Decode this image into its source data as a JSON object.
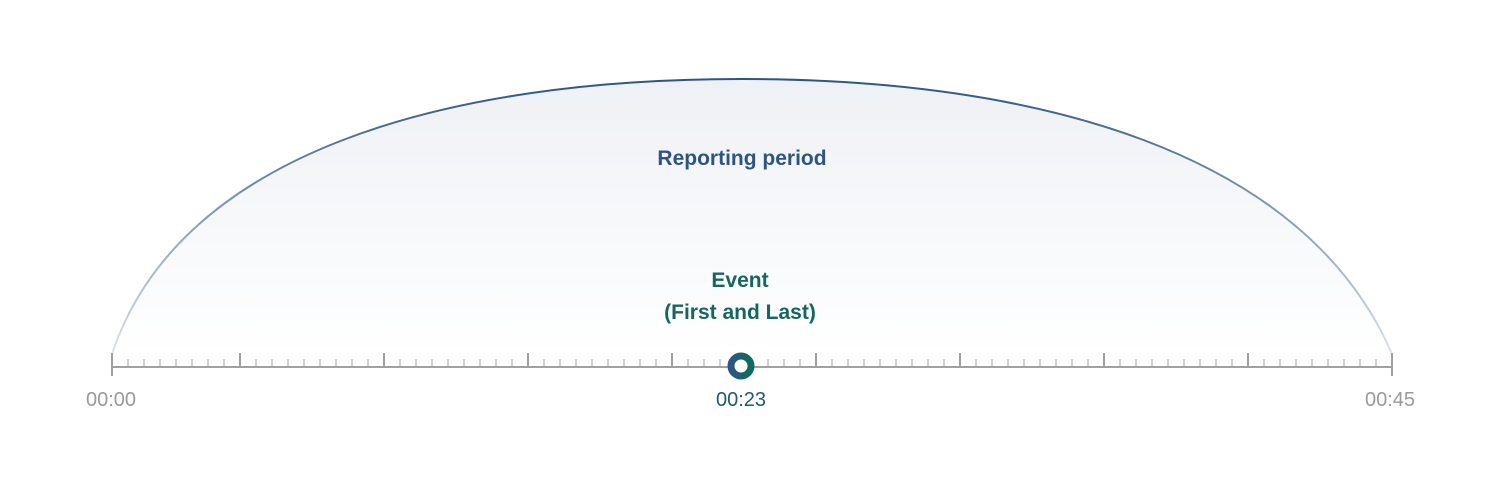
{
  "period_label": "Reporting period",
  "event": {
    "title": "Event",
    "subtitle": "(First and Last)",
    "time": "00:23"
  },
  "timeline": {
    "start": "00:00",
    "end": "00:45",
    "event_minute": 23,
    "total_minutes": 45
  },
  "colors": {
    "period": "#2e5580",
    "event": "#15665f",
    "axis": "#a0a0a0"
  }
}
